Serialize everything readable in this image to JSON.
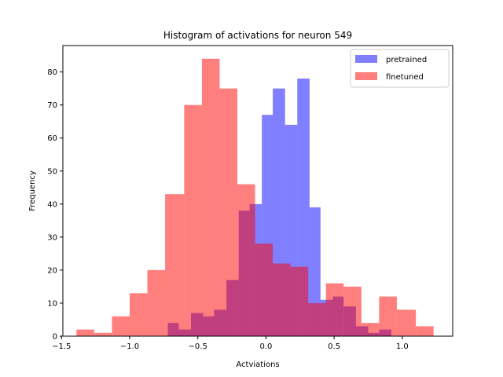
{
  "chart_data": {
    "type": "histogram",
    "title": "Histogram of activations for neuron 549",
    "xlabel": "Actviations",
    "ylabel": "Frequency",
    "xlim": [
      -1.49,
      1.37
    ],
    "ylim": [
      0,
      88
    ],
    "xticks": [
      -1.5,
      -1.0,
      -0.5,
      0.0,
      0.5,
      1.0
    ],
    "xtick_labels": [
      "−1.5",
      "−1.0",
      "−0.5",
      "0.0",
      "0.5",
      "1.0"
    ],
    "yticks": [
      0,
      10,
      20,
      30,
      40,
      50,
      60,
      70,
      80
    ],
    "ytick_labels": [
      "0",
      "10",
      "20",
      "30",
      "40",
      "50",
      "60",
      "70",
      "80"
    ],
    "legend_position": "upper-right",
    "series": [
      {
        "name": "pretrained",
        "color": "#0000ff",
        "alpha": 0.5,
        "bin_edges": [
          -0.72,
          -0.64,
          -0.55,
          -0.46,
          -0.38,
          -0.29,
          -0.2,
          -0.12,
          -0.03,
          0.05,
          0.14,
          0.23,
          0.32,
          0.4,
          0.49,
          0.57,
          0.66,
          0.75,
          0.83,
          0.92
        ],
        "values": [
          4,
          2,
          7,
          6,
          8,
          17,
          38,
          40,
          67,
          75,
          64,
          78,
          39,
          11,
          12,
          9,
          3,
          1,
          2
        ]
      },
      {
        "name": "finetuned",
        "color": "#ff0000",
        "alpha": 0.5,
        "bin_edges": [
          -1.39,
          -1.26,
          -1.13,
          -1.0,
          -0.87,
          -0.74,
          -0.6,
          -0.47,
          -0.34,
          -0.21,
          -0.08,
          0.05,
          0.18,
          0.31,
          0.44,
          0.57,
          0.7,
          0.83,
          0.96,
          1.1,
          1.23
        ],
        "values": [
          2,
          1,
          6,
          13,
          20,
          43,
          70,
          84,
          75,
          46,
          28,
          22,
          21,
          10,
          16,
          15,
          4,
          12,
          8,
          3
        ]
      }
    ]
  }
}
